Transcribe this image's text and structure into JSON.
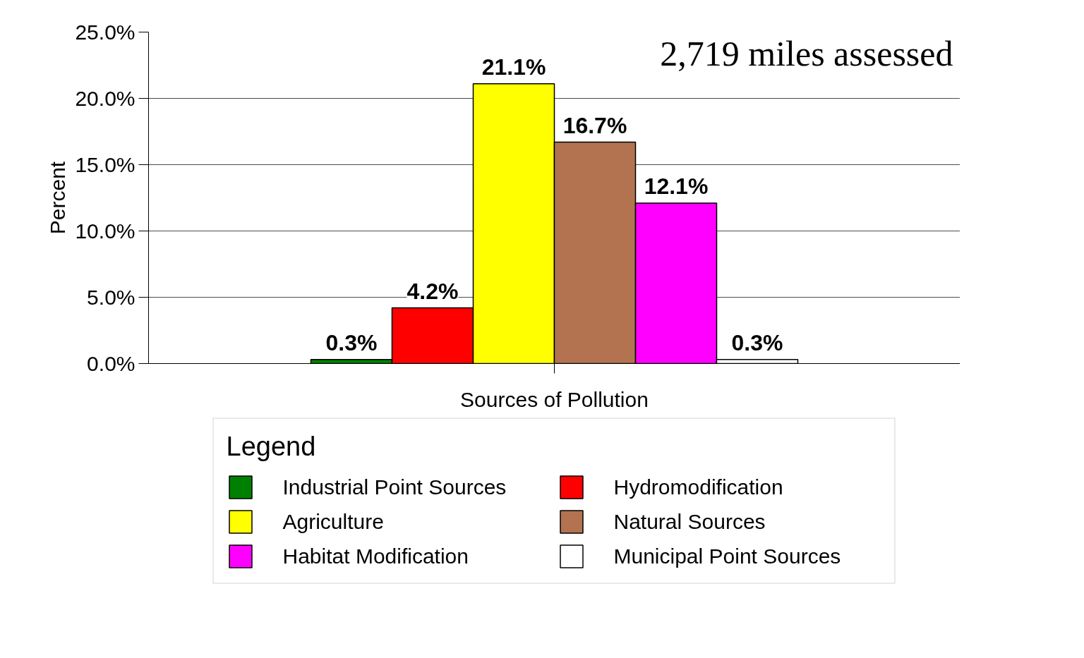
{
  "chart_data": {
    "type": "bar",
    "categories": [
      "Sources of Pollution"
    ],
    "ylabel": "Percent",
    "legend_title": "Legend",
    "legend": "bottom",
    "grid": "y",
    "ylim": [
      0,
      25
    ],
    "yticks": [
      {
        "value": 0,
        "label": "0.0%"
      },
      {
        "value": 5,
        "label": "5.0%"
      },
      {
        "value": 10,
        "label": "10.0%"
      },
      {
        "value": 15,
        "label": "15.0%"
      },
      {
        "value": 20,
        "label": "20.0%"
      },
      {
        "value": 25,
        "label": "25.0%"
      }
    ],
    "annotations": [
      "2,719 miles assessed"
    ],
    "series": [
      {
        "name": "Industrial Point Sources",
        "color": "#008000",
        "values": [
          0.3
        ],
        "value_labels": [
          "0.3%"
        ]
      },
      {
        "name": "Hydromodification",
        "color": "#ff0000",
        "values": [
          4.2
        ],
        "value_labels": [
          "4.2%"
        ]
      },
      {
        "name": "Agriculture",
        "color": "#ffff00",
        "values": [
          21.1
        ],
        "value_labels": [
          "21.1%"
        ]
      },
      {
        "name": "Natural Sources",
        "color": "#b47350",
        "values": [
          16.7
        ],
        "value_labels": [
          "16.7%"
        ]
      },
      {
        "name": "Habitat Modification",
        "color": "#ff00ff",
        "values": [
          12.1
        ],
        "value_labels": [
          "12.1%"
        ]
      },
      {
        "name": "Municipal Point Sources",
        "color": "#ffffff",
        "values": [
          0.3
        ],
        "value_labels": [
          "0.3%"
        ]
      }
    ]
  }
}
